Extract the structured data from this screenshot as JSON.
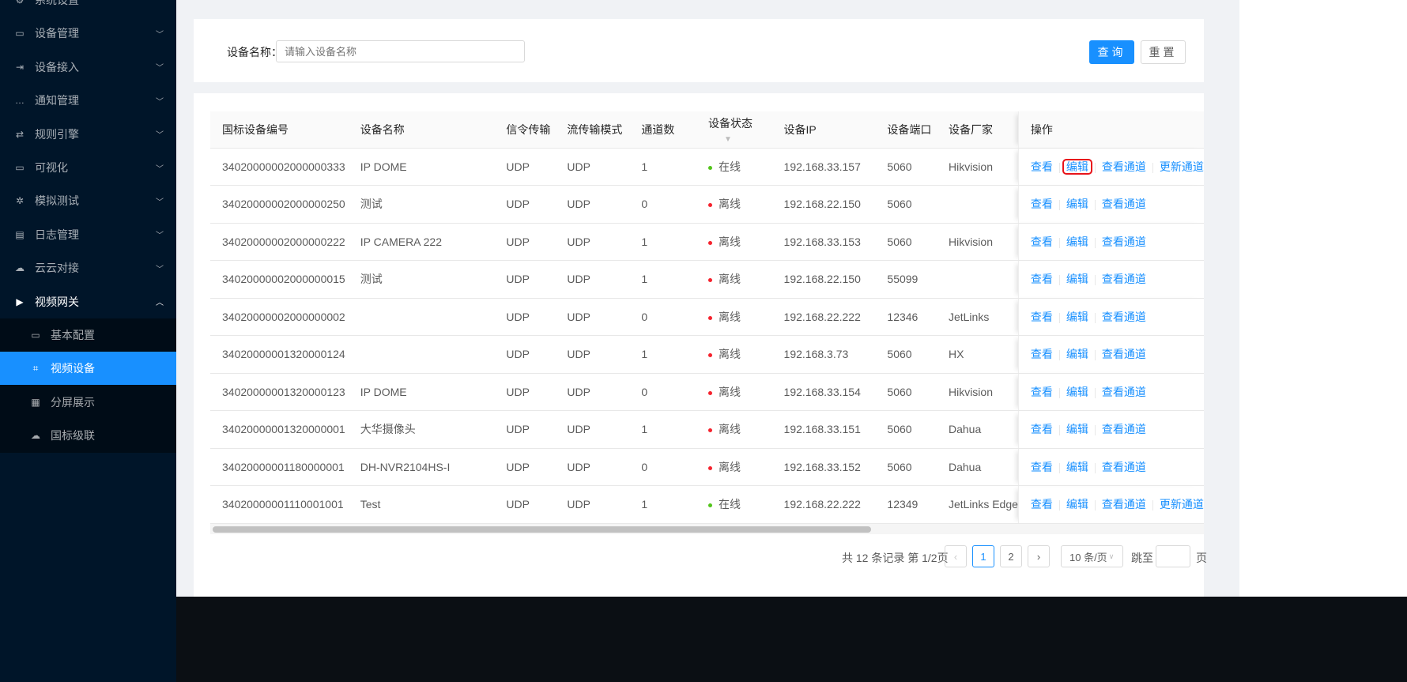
{
  "sidebar": {
    "items": [
      {
        "label": "系统设置",
        "icon": "gear-icon"
      },
      {
        "label": "设备管理",
        "icon": "device-icon"
      },
      {
        "label": "设备接入",
        "icon": "login-icon"
      },
      {
        "label": "通知管理",
        "icon": "message-icon"
      },
      {
        "label": "规则引擎",
        "icon": "retweet-icon"
      },
      {
        "label": "可视化",
        "icon": "desktop-icon"
      },
      {
        "label": "模拟测试",
        "icon": "bug-icon"
      },
      {
        "label": "日志管理",
        "icon": "calendar-icon"
      },
      {
        "label": "云云对接",
        "icon": "cloud-icon"
      },
      {
        "label": "视频网关",
        "icon": "video-icon"
      }
    ],
    "sub": [
      {
        "label": "基本配置",
        "icon": "camera-icon"
      },
      {
        "label": "视频设备",
        "icon": "device-frame-icon",
        "active": true
      },
      {
        "label": "分屏展示",
        "icon": "grid-icon"
      },
      {
        "label": "国标级联",
        "icon": "cloud-upload-icon"
      }
    ]
  },
  "search": {
    "label": "设备名称：",
    "placeholder": "请输入设备名称",
    "query": "查询",
    "reset": "重置"
  },
  "table": {
    "columns": [
      "国标设备编号",
      "设备名称",
      "信令传输",
      "流传输模式",
      "通道数",
      "设备状态",
      "设备IP",
      "设备端口",
      "设备厂家",
      "操作"
    ],
    "rows": [
      [
        "34020000002000000333",
        "IP DOME",
        "UDP",
        "UDP",
        "1",
        "在线",
        "192.168.33.157",
        "5060",
        "Hikvision"
      ],
      [
        "34020000002000000250",
        "测试",
        "UDP",
        "UDP",
        "0",
        "离线",
        "192.168.22.150",
        "5060",
        ""
      ],
      [
        "34020000002000000222",
        "IP CAMERA 222",
        "UDP",
        "UDP",
        "1",
        "离线",
        "192.168.33.153",
        "5060",
        "Hikvision"
      ],
      [
        "34020000002000000015",
        "测试",
        "UDP",
        "UDP",
        "1",
        "离线",
        "192.168.22.150",
        "55099",
        ""
      ],
      [
        "34020000002000000002",
        "",
        "UDP",
        "UDP",
        "0",
        "离线",
        "192.168.22.222",
        "12346",
        "JetLinks"
      ],
      [
        "34020000001320000124",
        "",
        "UDP",
        "UDP",
        "1",
        "离线",
        "192.168.3.73",
        "5060",
        "HX"
      ],
      [
        "34020000001320000123",
        "IP DOME",
        "UDP",
        "UDP",
        "0",
        "离线",
        "192.168.33.154",
        "5060",
        "Hikvision"
      ],
      [
        "34020000001320000001",
        "大华摄像头",
        "UDP",
        "UDP",
        "1",
        "离线",
        "192.168.33.151",
        "5060",
        "Dahua"
      ],
      [
        "34020000001180000001",
        "DH-NVR2104HS-I",
        "UDP",
        "UDP",
        "0",
        "离线",
        "192.168.33.152",
        "5060",
        "Dahua"
      ],
      [
        "34020000001110001001",
        "Test",
        "UDP",
        "UDP",
        "1",
        "在线",
        "192.168.22.222",
        "12349",
        "JetLinks Edge"
      ]
    ],
    "ops": {
      "view": "查看",
      "edit": "编辑",
      "channels": "查看通道",
      "update": "更新通道"
    },
    "online": "在线",
    "online_color": "#52c41a",
    "offline_color": "#f5222d"
  },
  "pagination": {
    "summary": "共 12 条记录 第 1/2页",
    "pages": [
      "1",
      "2"
    ],
    "current": "1",
    "page_size": "10 条/页",
    "jump_label": "跳至",
    "page_suffix": "页"
  }
}
